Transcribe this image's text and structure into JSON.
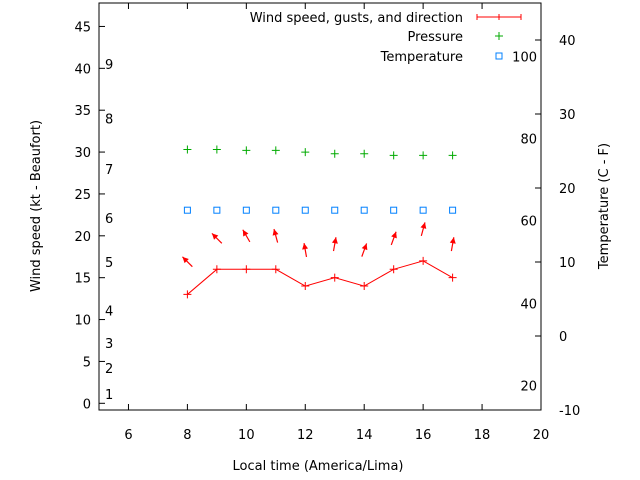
{
  "chart_data": {
    "type": "line",
    "xlabel": "Local time (America/Lima)",
    "ylabel": "Wind speed (kt - Beaufort)",
    "y2label": "Temperature (C - F)",
    "xlim": [
      5,
      20
    ],
    "ylim": [
      -0.8,
      47.8
    ],
    "y2lim": [
      -10,
      45
    ],
    "xticks": [
      6,
      8,
      10,
      12,
      14,
      16,
      18,
      20
    ],
    "yticks": [
      0,
      5,
      10,
      15,
      20,
      25,
      30,
      35,
      40,
      45
    ],
    "y2ticks": [
      -10,
      0,
      10,
      20,
      30,
      40
    ],
    "beaufort_labels": [
      {
        "label": "1",
        "kt": 1.1
      },
      {
        "label": "2",
        "kt": 4.2
      },
      {
        "label": "3",
        "kt": 7.2
      },
      {
        "label": "4",
        "kt": 11.1
      },
      {
        "label": "5",
        "kt": 16.9
      },
      {
        "label": "6",
        "kt": 22.1
      },
      {
        "label": "7",
        "kt": 28.0
      },
      {
        "label": "8",
        "kt": 34.0
      },
      {
        "label": "9",
        "kt": 40.5
      }
    ],
    "fahrenheit_labels": [
      {
        "label": "20",
        "c": -6.7
      },
      {
        "label": "40",
        "c": 4.4
      },
      {
        "label": "60",
        "c": 15.6
      },
      {
        "label": "80",
        "c": 26.7
      },
      {
        "label": "100",
        "c": 37.8
      }
    ],
    "x": [
      8,
      9,
      10,
      11,
      12,
      13,
      14,
      15,
      16,
      17
    ],
    "series": [
      {
        "name": "Wind speed, gusts, and direction",
        "color": "#ff0000",
        "axis": "y",
        "values": [
          13,
          16,
          16,
          16,
          14,
          15,
          14,
          16,
          17,
          15
        ],
        "gusts": [
          16.9,
          19.7,
          20,
          20,
          18.3,
          19,
          18.3,
          19.7,
          20.8,
          19
        ],
        "direction_heading_deg": [
          -45,
          -45,
          -30,
          -15,
          -10,
          10,
          20,
          20,
          15,
          10
        ]
      },
      {
        "name": "Pressure",
        "color": "#00aa00",
        "axis": "y",
        "values": [
          30.3,
          30.3,
          30.2,
          30.2,
          30.0,
          29.8,
          29.8,
          29.6,
          29.6,
          29.6
        ]
      },
      {
        "name": "Temperature",
        "color": "#0080ff",
        "axis": "y2",
        "values": [
          17,
          17,
          17,
          17,
          17,
          17,
          17,
          17,
          17,
          17
        ]
      }
    ],
    "legend_position": "top-right"
  }
}
